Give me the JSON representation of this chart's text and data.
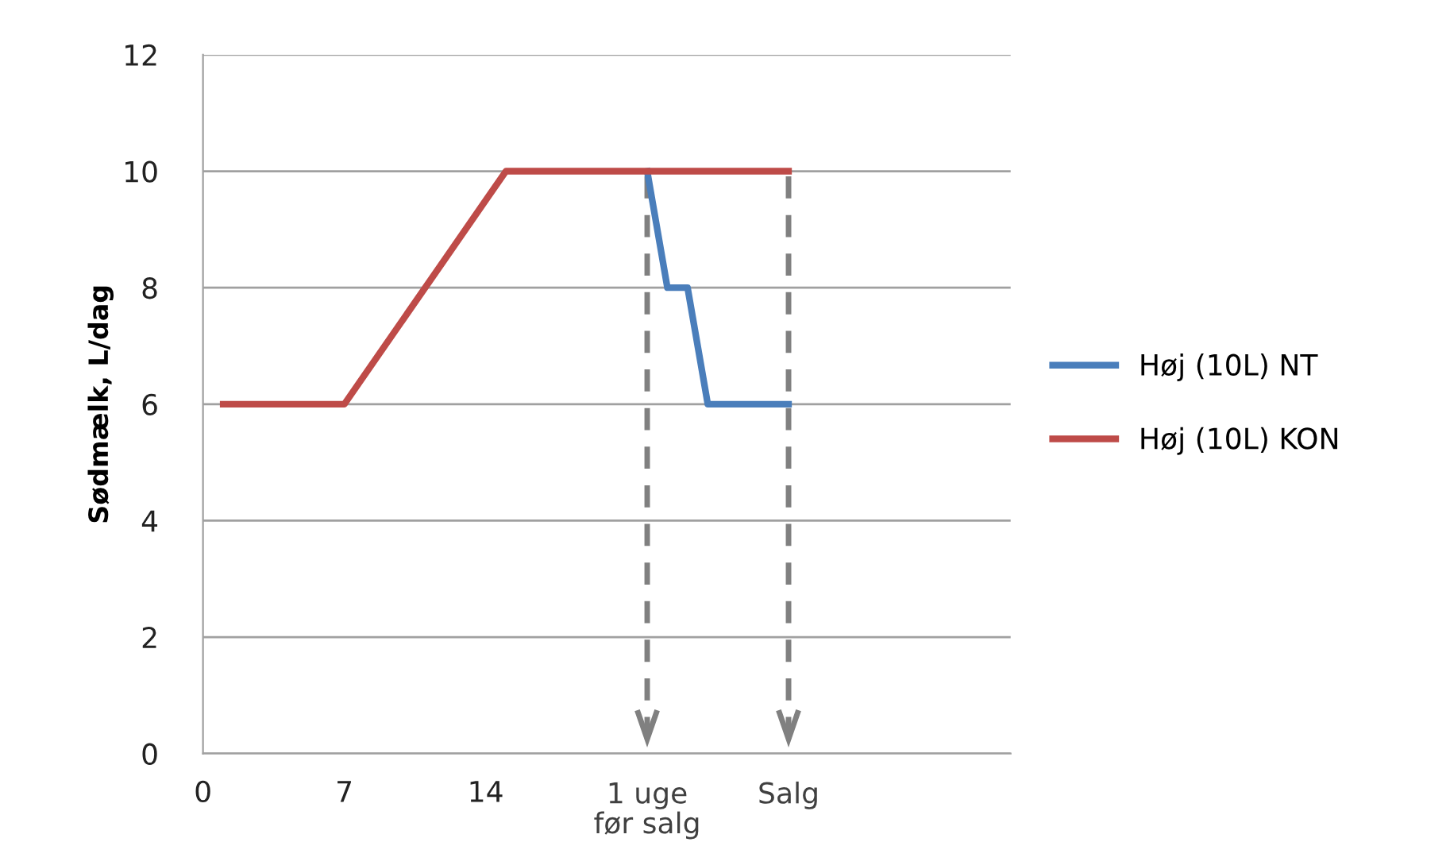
{
  "chart_data": {
    "type": "line",
    "ylabel": "Sødmælk, L/dag",
    "xlim": [
      0,
      40
    ],
    "xticks": [
      0,
      7,
      14
    ],
    "ylim": [
      0,
      12
    ],
    "yticks": [
      0,
      2,
      4,
      6,
      8,
      10,
      12
    ],
    "grid": "y",
    "legend": "right",
    "marker": "none",
    "line_style": "solid",
    "series": [
      {
        "name": "Høj (10L) NT",
        "color": "#4a7ebb",
        "x": [
          22,
          23,
          24,
          25,
          29
        ],
        "values": [
          10,
          8,
          8,
          6,
          6
        ]
      },
      {
        "name": "Høj (10L) KON",
        "color": "#be4b48",
        "x": [
          1,
          7,
          12,
          15,
          22,
          29
        ],
        "values": [
          6,
          6,
          8.5,
          10,
          10,
          10
        ]
      }
    ],
    "ref_lines": [
      {
        "axis": "x",
        "value": 22,
        "label": "1 uge\nfør salg",
        "color": "#808080",
        "line_style": "dashed"
      },
      {
        "axis": "x",
        "value": 29,
        "label": "Salg",
        "color": "#808080",
        "line_style": "dashed"
      }
    ]
  }
}
